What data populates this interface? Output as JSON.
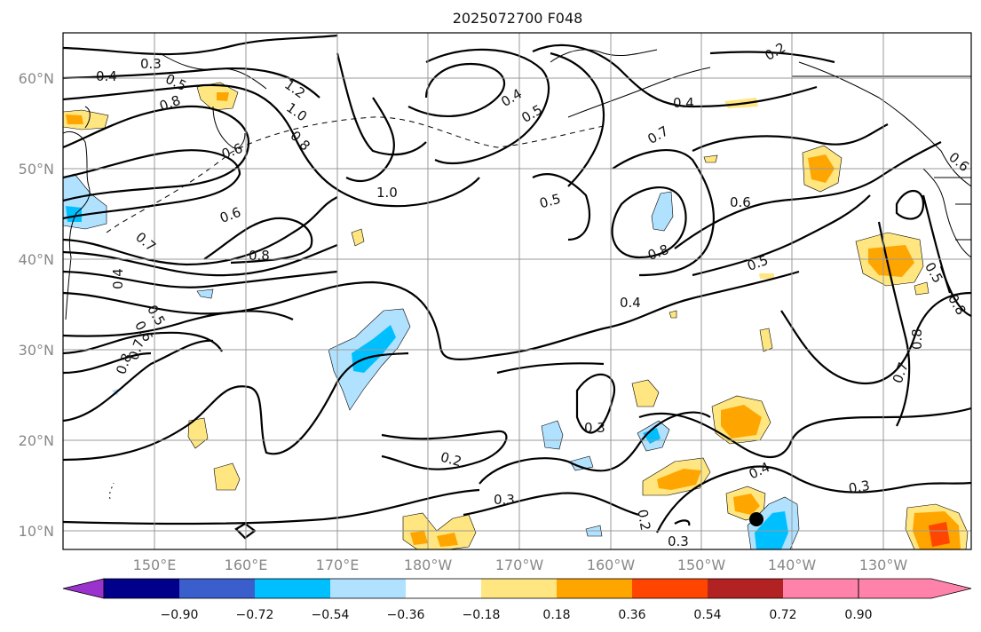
{
  "title": "2025072700 F048",
  "lat_labels": [
    "60°N",
    "50°N",
    "40°N",
    "30°N",
    "20°N",
    "10°N"
  ],
  "lon_labels": [
    "150°E",
    "160°E",
    "170°E",
    "180°W",
    "170°W",
    "160°W",
    "150°W",
    "140°W",
    "130°W"
  ],
  "colorbar": {
    "ticks": [
      "−0.90",
      "−0.72",
      "−0.54",
      "−0.36",
      "−0.18",
      "0.18",
      "0.36",
      "0.54",
      "0.72",
      "0.90"
    ],
    "colors": [
      "#9a32cd",
      "#00008b",
      "#3a5fcd",
      "#00bfff",
      "#b0e2ff",
      "#ffffff",
      "#ffe680",
      "#ffa500",
      "#ff4500",
      "#b22222",
      "#ff82ab"
    ]
  },
  "contour_labels": [
    "0.3",
    "0.4",
    "0.5",
    "0.6",
    "0.7",
    "0.8",
    "1.0",
    "1.2",
    "0.2"
  ],
  "contour_label_items": [
    {
      "id": "l1",
      "text": "0.3"
    },
    {
      "id": "l2",
      "text": "0.4"
    },
    {
      "id": "l3",
      "text": "0.8"
    },
    {
      "id": "l4",
      "text": "1.2"
    },
    {
      "id": "l5",
      "text": "1.0"
    },
    {
      "id": "l6",
      "text": "0.8"
    },
    {
      "id": "l7",
      "text": "0.6"
    },
    {
      "id": "l8",
      "text": "1.0"
    },
    {
      "id": "l9",
      "text": "0.6"
    },
    {
      "id": "l10",
      "text": "0.7"
    },
    {
      "id": "l11",
      "text": "0.8"
    },
    {
      "id": "l12",
      "text": "0.4"
    },
    {
      "id": "l13",
      "text": "0.4"
    },
    {
      "id": "l14",
      "text": "0.5"
    },
    {
      "id": "l15",
      "text": "0.7"
    },
    {
      "id": "l16",
      "text": "0.5"
    },
    {
      "id": "l17",
      "text": "0.6"
    },
    {
      "id": "l18",
      "text": "0.8"
    },
    {
      "id": "l19",
      "text": "0.5"
    },
    {
      "id": "l20",
      "text": "0.4"
    },
    {
      "id": "l21",
      "text": "0.5"
    },
    {
      "id": "l22",
      "text": "0.6"
    },
    {
      "id": "l23",
      "text": "0.7"
    },
    {
      "id": "l24",
      "text": "0.8"
    },
    {
      "id": "l25",
      "text": "0.3"
    },
    {
      "id": "l26",
      "text": "0.2"
    },
    {
      "id": "l27",
      "text": "0.3"
    },
    {
      "id": "l28",
      "text": "0.4"
    },
    {
      "id": "l29",
      "text": "0.3"
    },
    {
      "id": "l30",
      "text": "0.2"
    },
    {
      "id": "l31",
      "text": "0.3"
    },
    {
      "id": "l32",
      "text": "0.2"
    },
    {
      "id": "l33",
      "text": "0.4"
    },
    {
      "id": "l34",
      "text": "0.6"
    },
    {
      "id": "l35",
      "text": "0.5"
    },
    {
      "id": "l36",
      "text": "0.8"
    },
    {
      "id": "l37",
      "text": "0.8"
    },
    {
      "id": "l38",
      "text": "0.7"
    },
    {
      "id": "l39",
      "text": "0.5"
    }
  ]
}
